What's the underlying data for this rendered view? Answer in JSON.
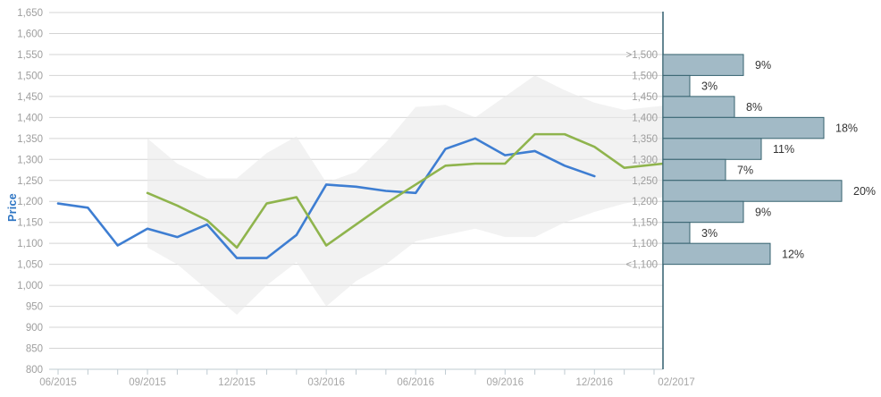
{
  "chart_data": {
    "type": "line",
    "subtype": "price-forecast-line-chart-with-range-band-and-horizontal-histogram",
    "title": "",
    "xlabel": "",
    "ylabel": "Price",
    "y_axis": {
      "min": 800,
      "max": 1650,
      "step": 50
    },
    "months": [
      "06/2015",
      "07/2015",
      "08/2015",
      "09/2015",
      "10/2015",
      "11/2015",
      "12/2015",
      "01/2016",
      "02/2016",
      "03/2016",
      "04/2016",
      "05/2016",
      "06/2016",
      "07/2016",
      "08/2016",
      "09/2016",
      "10/2016",
      "11/2016",
      "12/2016",
      "01/2017",
      "02/2017"
    ],
    "x_labels": [
      {
        "label": "06/2015",
        "i": 0,
        "dx": 0
      },
      {
        "label": "09/2015",
        "i": 3,
        "dx": 0
      },
      {
        "label": "12/2015",
        "i": 6,
        "dx": 0
      },
      {
        "label": "03/2016",
        "i": 9,
        "dx": 0
      },
      {
        "label": "06/2016",
        "i": 12,
        "dx": 0
      },
      {
        "label": "09/2016",
        "i": 15,
        "dx": 0
      },
      {
        "label": "12/2016",
        "i": 18,
        "dx": 0
      },
      {
        "label": "02/2017",
        "i": 20,
        "dx": 25
      }
    ],
    "series": [
      {
        "name": "actual-price-line",
        "color": "#3e7ed2",
        "start": 0,
        "extend_to_axis": false,
        "values": [
          1195,
          1185,
          1095,
          1135,
          1115,
          1145,
          1065,
          1065,
          1120,
          1240,
          1235,
          1225,
          1220,
          1325,
          1350,
          1310,
          1320,
          1285,
          1260
        ]
      },
      {
        "name": "forecast-price-line",
        "color": "#8fb44d",
        "start": 3,
        "extend_to_axis": true,
        "values": [
          1220,
          1190,
          1155,
          1090,
          1195,
          1210,
          1095,
          1145,
          1195,
          1240,
          1285,
          1290,
          1290,
          1360,
          1360,
          1330,
          1280,
          1290
        ]
      }
    ],
    "band": {
      "name": "forecast-range-band",
      "color": "#e9e9e9",
      "opacity": 0.6,
      "start": 3,
      "top": [
        1350,
        1290,
        1255,
        1255,
        1315,
        1355,
        1245,
        1270,
        1340,
        1425,
        1430,
        1400,
        1450,
        1500,
        1465,
        1435,
        1418,
        1428
      ],
      "bottom": [
        1090,
        1050,
        990,
        930,
        1000,
        1055,
        950,
        1010,
        1050,
        1105,
        1120,
        1135,
        1115,
        1115,
        1150,
        1175,
        1195,
        1210
      ]
    },
    "histogram": {
      "bin_boundary_labels": [
        ">1,500",
        "1,500",
        "1,450",
        "1,400",
        "1,350",
        "1,300",
        "1,250",
        "1,200",
        "1,150",
        "1,100",
        "<1,100"
      ],
      "bin_boundary_values": [
        1550,
        1500,
        1450,
        1400,
        1350,
        1300,
        1250,
        1200,
        1150,
        1100,
        1050
      ],
      "percents": [
        9,
        3,
        8,
        18,
        11,
        7,
        20,
        9,
        3,
        12
      ],
      "percent_labels": [
        "9%",
        "3%",
        "8%",
        "18%",
        "11%",
        "7%",
        "20%",
        "9%",
        "3%",
        "12%"
      ],
      "bar_fill": "#a2bac6",
      "bar_stroke": "#35626f"
    },
    "colors": {
      "grid": "#d4d4d4",
      "axis": "#bfcbd2",
      "tick_label": "#9e9e9e",
      "percent_label": "#333333",
      "ylabel_color": "#2e75c3",
      "hist_axis_line": "#3d6877"
    },
    "layout_hints": {
      "grid": "horizontal only",
      "legend": "none",
      "histogram_position": "right, anchored at 02/2017 axis"
    }
  }
}
